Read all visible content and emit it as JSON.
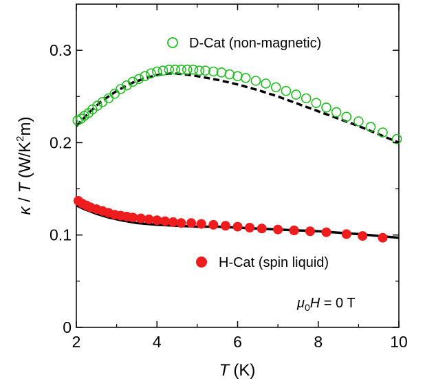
{
  "chart_data": {
    "type": "scatter",
    "xlabel": {
      "symbol": "T",
      "unit": "(K)"
    },
    "ylabel": {
      "kappa": "κ",
      "slash": " / ",
      "T": "T",
      "unit_open": " (W/K",
      "unit_sup": "2",
      "unit_close": "m)"
    },
    "xlim": [
      2,
      10
    ],
    "ylim": [
      0,
      0.35
    ],
    "x_ticks": [
      "2",
      "4",
      "6",
      "8",
      "10"
    ],
    "y_ticks": [
      "0",
      "0.1",
      "0.2",
      "0.3"
    ],
    "x_tick_values": [
      2,
      4,
      6,
      8,
      10
    ],
    "y_tick_values": [
      0,
      0.1,
      0.2,
      0.3
    ],
    "x_minor_ticks": [
      3,
      5,
      7,
      9
    ],
    "y_minor_ticks": [
      0.05,
      0.15,
      0.25
    ],
    "grid": false,
    "legend_position": "top-right",
    "annotation": {
      "mu": "μ",
      "sub": "0",
      "H": "H",
      "rest": " = 0 T"
    },
    "series": [
      {
        "name": "D-Cat (non-magnetic)",
        "marker": "open-circle",
        "color": "#22bb22",
        "x": [
          2.03,
          2.12,
          2.2,
          2.3,
          2.4,
          2.52,
          2.65,
          2.8,
          2.95,
          3.1,
          3.25,
          3.4,
          3.55,
          3.7,
          3.85,
          4.0,
          4.15,
          4.3,
          4.45,
          4.6,
          4.75,
          4.9,
          5.05,
          5.2,
          5.4,
          5.6,
          5.8,
          6.0,
          6.2,
          6.45,
          6.7,
          6.95,
          7.2,
          7.45,
          7.7,
          7.95,
          8.2,
          8.45,
          8.7,
          9.0,
          9.3,
          9.6,
          9.95
        ],
        "y": [
          0.224,
          0.226,
          0.229,
          0.232,
          0.236,
          0.24,
          0.244,
          0.248,
          0.253,
          0.258,
          0.262,
          0.266,
          0.269,
          0.272,
          0.275,
          0.277,
          0.278,
          0.279,
          0.279,
          0.279,
          0.279,
          0.279,
          0.278,
          0.278,
          0.277,
          0.276,
          0.274,
          0.272,
          0.27,
          0.267,
          0.264,
          0.26,
          0.256,
          0.252,
          0.248,
          0.243,
          0.238,
          0.233,
          0.228,
          0.223,
          0.217,
          0.211,
          0.204
        ]
      },
      {
        "name": "H-Cat (spin liquid)",
        "marker": "filled-circle",
        "color": "#ee1c1c",
        "x": [
          2.05,
          2.15,
          2.25,
          2.35,
          2.5,
          2.65,
          2.8,
          2.95,
          3.1,
          3.25,
          3.4,
          3.6,
          3.8,
          4.0,
          4.2,
          4.4,
          4.6,
          4.85,
          5.1,
          5.4,
          5.7,
          6.0,
          6.3,
          6.6,
          7.0,
          7.4,
          7.8,
          8.2,
          8.7,
          9.1,
          9.6
        ],
        "y": [
          0.137,
          0.134,
          0.132,
          0.13,
          0.128,
          0.126,
          0.124,
          0.122,
          0.121,
          0.12,
          0.119,
          0.118,
          0.117,
          0.116,
          0.115,
          0.114,
          0.113,
          0.113,
          0.112,
          0.111,
          0.11,
          0.109,
          0.108,
          0.107,
          0.106,
          0.105,
          0.104,
          0.103,
          0.101,
          0.099,
          0.097
        ]
      }
    ],
    "fit_curves": [
      {
        "style": "dashed",
        "color": "#000000",
        "x": [
          2.0,
          2.3,
          2.6,
          3.0,
          3.4,
          3.8,
          4.1,
          4.4,
          4.7,
          5.0,
          5.5,
          6.0,
          6.5,
          7.0,
          7.5,
          8.0,
          8.5,
          9.0,
          9.5,
          10.0
        ],
        "y": [
          0.218,
          0.232,
          0.244,
          0.256,
          0.265,
          0.271,
          0.274,
          0.275,
          0.274,
          0.272,
          0.268,
          0.263,
          0.257,
          0.25,
          0.242,
          0.234,
          0.226,
          0.218,
          0.209,
          0.2
        ]
      },
      {
        "style": "solid",
        "color": "#000000",
        "x": [
          2.0,
          2.2,
          2.5,
          2.8,
          3.1,
          3.5,
          4.0,
          4.5,
          5.0,
          5.5,
          6.0,
          7.0,
          8.0,
          9.0,
          10.0
        ],
        "y": [
          0.132,
          0.128,
          0.123,
          0.119,
          0.116,
          0.113,
          0.111,
          0.11,
          0.109,
          0.109,
          0.108,
          0.106,
          0.104,
          0.101,
          0.097
        ]
      }
    ]
  }
}
